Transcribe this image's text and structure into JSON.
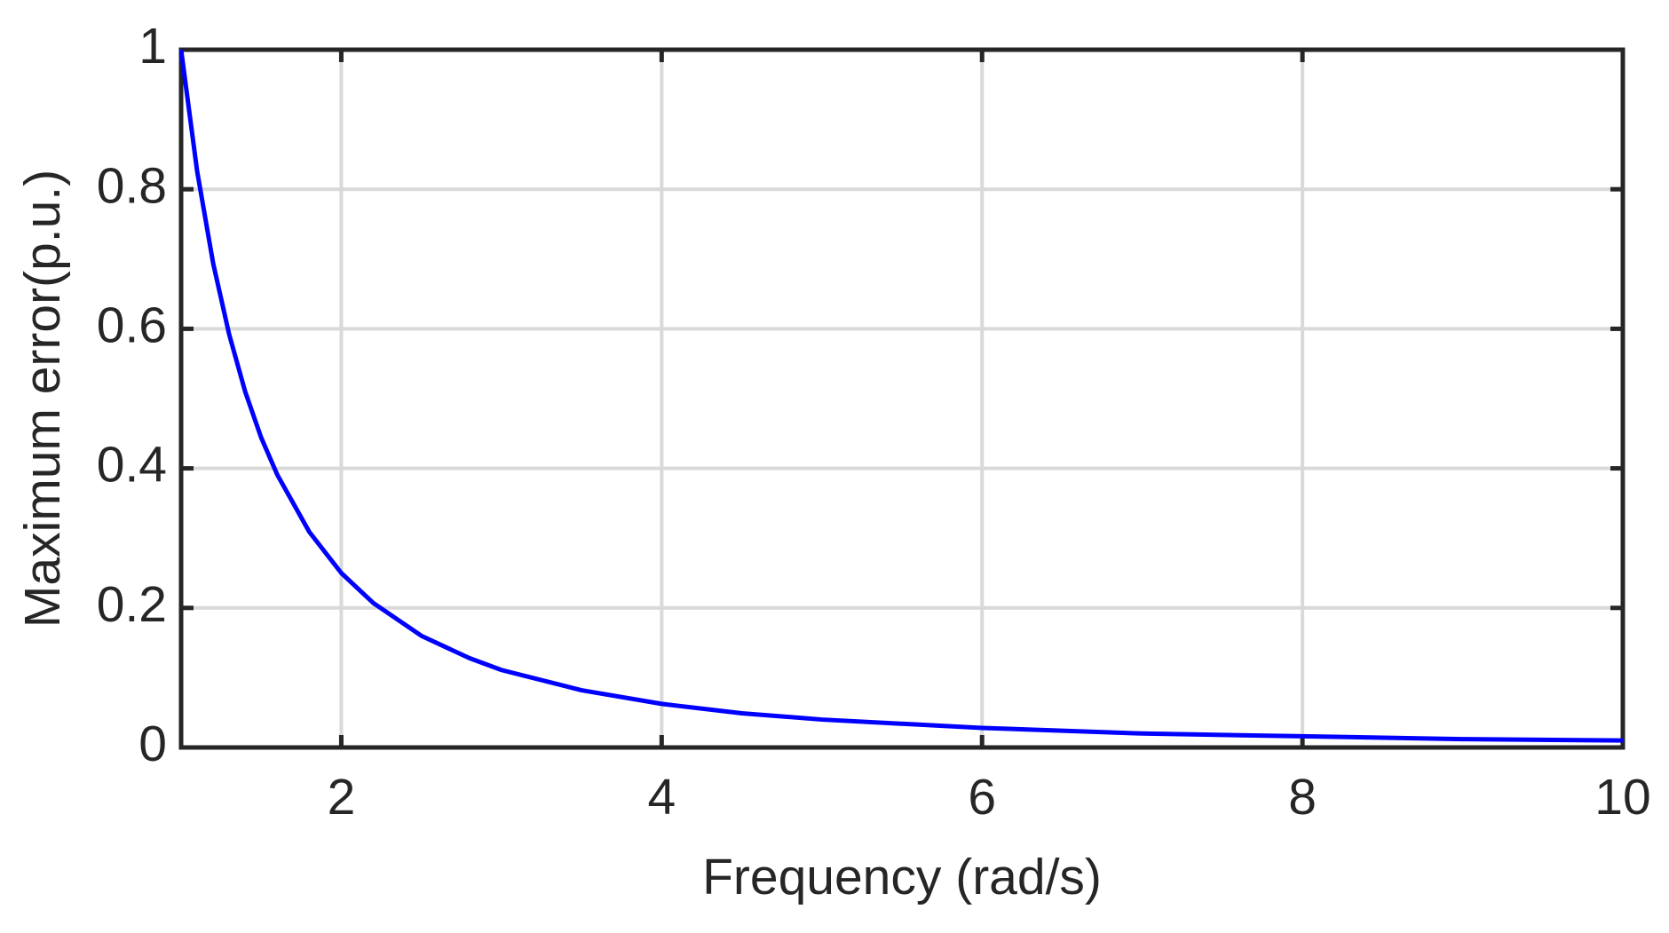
{
  "chart_data": {
    "type": "line",
    "xlabel": "Frequency (rad/s)",
    "ylabel": "Maximum error(p.u.)",
    "x": [
      1,
      1.1,
      1.2,
      1.3,
      1.4,
      1.5,
      1.6,
      1.8,
      2,
      2.2,
      2.5,
      2.8,
      3,
      3.5,
      4,
      4.5,
      5,
      6,
      7,
      8,
      9,
      10
    ],
    "series": [
      {
        "color": "#0000ff",
        "values": [
          1,
          0.826,
          0.694,
          0.592,
          0.51,
          0.444,
          0.391,
          0.309,
          0.25,
          0.207,
          0.16,
          0.128,
          0.111,
          0.082,
          0.0625,
          0.049,
          0.04,
          0.028,
          0.02,
          0.016,
          0.012,
          0.01
        ]
      }
    ],
    "xlim": [
      1,
      10
    ],
    "xticks": [
      2,
      4,
      6,
      8,
      10
    ],
    "ylim": [
      0,
      1
    ],
    "yticks": [
      0,
      0.2,
      0.4,
      0.6,
      0.8,
      1
    ],
    "grid": true
  }
}
